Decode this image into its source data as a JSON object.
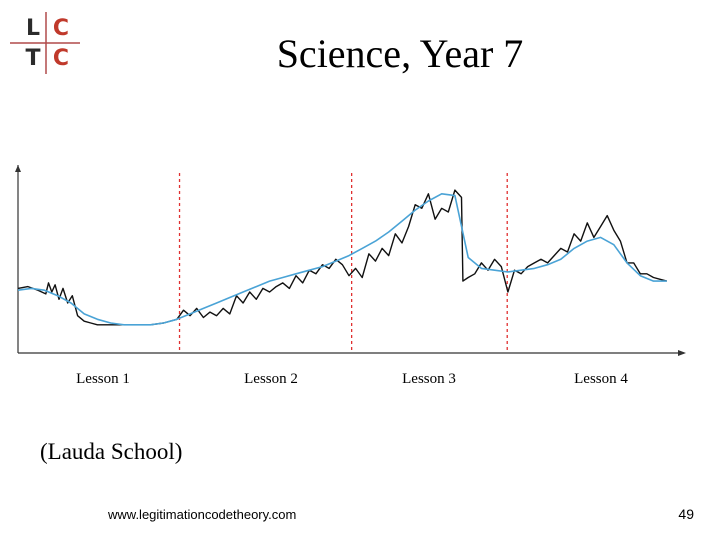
{
  "slide": {
    "title": "Science, Year 7",
    "school": "(Lauda School)",
    "url": "www.legitimationcodetheory.com",
    "page_number": "49"
  },
  "logo": {
    "letters": [
      "L",
      "C",
      "T",
      "C"
    ],
    "colors": {
      "dark": "#2b2b2b",
      "red": "#c0392b",
      "cross": "#b04a4a"
    }
  },
  "colors": {
    "profile_line": "#111111",
    "trend_line": "#4aa3d6",
    "divider": "#e03030",
    "axis": "#333333"
  },
  "chart_data": {
    "type": "line",
    "title": "",
    "xlabel": "",
    "ylabel": "",
    "xlim": [
      0,
      100
    ],
    "ylim": [
      0,
      100
    ],
    "grid": false,
    "categories": [
      "Lesson 1",
      "Lesson 2",
      "Lesson 3",
      "Lesson 4"
    ],
    "dividers_x": [
      24.4,
      50.4,
      73.9
    ],
    "series": [
      {
        "style": "jagged",
        "x": [
          0,
          1.5,
          3,
          4.2,
          4.6,
          5.1,
          5.6,
          6.2,
          6.8,
          7.5,
          8.2,
          9,
          10,
          11,
          12,
          14,
          16,
          18,
          20,
          22,
          24,
          25,
          26,
          27,
          28,
          29,
          30,
          31,
          32,
          33,
          34,
          35,
          36,
          37,
          38,
          39,
          40,
          41,
          42,
          43,
          44,
          45,
          46,
          47,
          48,
          49,
          50,
          51,
          52,
          53,
          54,
          55,
          56,
          57,
          58,
          59,
          60,
          61,
          62,
          63,
          64,
          65,
          66,
          67,
          67.2,
          68,
          69,
          70,
          71,
          72,
          73,
          74,
          75,
          76,
          77,
          78,
          79,
          80,
          81,
          82,
          83,
          84,
          85,
          86,
          87,
          88,
          89,
          90,
          91,
          92,
          93,
          94,
          95,
          96,
          97,
          98
        ],
        "y": [
          30,
          31,
          29,
          27,
          33,
          28,
          32,
          24,
          30,
          22,
          26,
          15,
          12,
          11,
          10,
          10,
          10,
          10,
          10,
          11,
          13,
          18,
          15,
          19,
          14,
          17,
          15,
          19,
          16,
          26,
          22,
          28,
          24,
          30,
          28,
          31,
          33,
          30,
          37,
          33,
          40,
          38,
          43,
          41,
          46,
          43,
          37,
          41,
          36,
          49,
          45,
          52,
          48,
          60,
          55,
          64,
          76,
          74,
          82,
          68,
          74,
          72,
          84,
          80,
          34,
          36,
          38,
          44,
          40,
          46,
          42,
          28,
          40,
          38,
          42,
          44,
          46,
          44,
          48,
          52,
          50,
          60,
          56,
          66,
          58,
          64,
          70,
          62,
          56,
          44,
          44,
          38,
          38,
          36,
          35,
          34
        ],
        "stroke_width": 1.4
      },
      {
        "style": "smooth",
        "x": [
          0,
          2,
          4,
          6,
          8,
          10,
          12,
          14,
          16,
          18,
          20,
          22,
          24,
          26,
          28,
          30,
          32,
          34,
          36,
          38,
          40,
          42,
          44,
          46,
          48,
          50,
          52,
          54,
          56,
          58,
          60,
          62,
          64,
          66,
          68,
          70,
          72,
          74,
          76,
          78,
          80,
          82,
          84,
          86,
          88,
          90,
          92,
          94,
          96,
          98
        ],
        "y": [
          29,
          30,
          29,
          26,
          22,
          16,
          13,
          11,
          10,
          10,
          10,
          11,
          13,
          16,
          19,
          22,
          25,
          28,
          31,
          34,
          36,
          38,
          40,
          42,
          45,
          48,
          52,
          56,
          61,
          67,
          73,
          78,
          82,
          81,
          47,
          41,
          40,
          39,
          40,
          41,
          43,
          46,
          52,
          56,
          58,
          54,
          44,
          37,
          34,
          34
        ],
        "stroke_width": 1.6
      }
    ]
  }
}
